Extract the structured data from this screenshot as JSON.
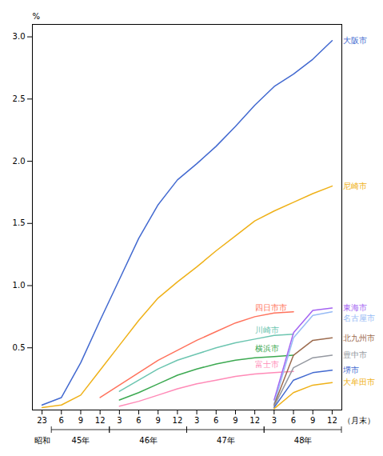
{
  "chart_data": {
    "type": "line",
    "ylabel": "%",
    "categories": [
      "23",
      "6",
      "9",
      "12",
      "3",
      "6",
      "9",
      "12",
      "3",
      "6",
      "9",
      "12",
      "3",
      "6",
      "9",
      "12"
    ],
    "series": [
      {
        "name": "大阪市",
        "values": [
          0.04,
          0.1,
          0.38,
          0.72,
          1.05,
          1.38,
          1.65,
          1.85,
          1.98,
          2.12,
          2.28,
          2.45,
          2.6,
          2.7,
          2.82,
          2.97
        ]
      },
      {
        "name": "尼崎市",
        "values": [
          0.02,
          0.04,
          0.12,
          0.32,
          0.52,
          0.72,
          0.9,
          1.03,
          1.15,
          1.28,
          1.4,
          1.52,
          1.6,
          1.67,
          1.74,
          1.8
        ]
      },
      {
        "name": "四日市市",
        "values": [
          null,
          null,
          null,
          0.1,
          0.2,
          0.3,
          0.4,
          0.48,
          0.56,
          0.63,
          0.7,
          0.75,
          0.78,
          0.79,
          null,
          null
        ]
      },
      {
        "name": "川崎市",
        "values": [
          null,
          null,
          null,
          null,
          0.15,
          0.24,
          0.33,
          0.4,
          0.45,
          0.5,
          0.54,
          0.57,
          0.6,
          0.61,
          null,
          null
        ]
      },
      {
        "name": "横浜市",
        "values": [
          null,
          null,
          null,
          null,
          0.08,
          0.14,
          0.21,
          0.28,
          0.33,
          0.37,
          0.4,
          0.42,
          0.43,
          0.44,
          null,
          null
        ]
      },
      {
        "name": "富士市",
        "values": [
          null,
          null,
          null,
          null,
          0.03,
          0.07,
          0.12,
          0.17,
          0.21,
          0.24,
          0.27,
          0.29,
          0.3,
          0.31,
          null,
          null
        ]
      },
      {
        "name": "東海市",
        "values": [
          null,
          null,
          null,
          null,
          null,
          null,
          null,
          null,
          null,
          null,
          null,
          null,
          0.08,
          0.62,
          0.8,
          0.82
        ]
      },
      {
        "name": "名古屋市",
        "values": [
          null,
          null,
          null,
          null,
          null,
          null,
          null,
          null,
          null,
          null,
          null,
          null,
          0.05,
          0.58,
          0.76,
          0.79
        ]
      },
      {
        "name": "北九州市",
        "values": [
          null,
          null,
          null,
          null,
          null,
          null,
          null,
          null,
          null,
          null,
          null,
          null,
          0.04,
          0.44,
          0.56,
          0.58
        ]
      },
      {
        "name": "豊中市",
        "values": [
          null,
          null,
          null,
          null,
          null,
          null,
          null,
          null,
          null,
          null,
          null,
          null,
          0.03,
          0.34,
          0.42,
          0.44
        ]
      },
      {
        "name": "堺市",
        "values": [
          null,
          null,
          null,
          null,
          null,
          null,
          null,
          null,
          null,
          null,
          null,
          null,
          0.02,
          0.24,
          0.3,
          0.32
        ]
      },
      {
        "name": "大牟田市",
        "values": [
          null,
          null,
          null,
          null,
          null,
          null,
          null,
          null,
          null,
          null,
          null,
          null,
          0.01,
          0.14,
          0.2,
          0.22
        ]
      }
    ],
    "ylim": [
      0,
      3.1
    ],
    "yticks": [
      0.5,
      {
        "value": 1.0,
        "label": "1.0"
      },
      1.5,
      {
        "value": 2.0,
        "label": "2.0"
      },
      2.5,
      {
        "value": 3.0,
        "label": "3.0"
      }
    ],
    "grid": false,
    "annotations": [
      "（月末）"
    ],
    "x_groups": [
      {
        "label": "昭和",
        "count": 1
      },
      {
        "label": "45年",
        "count": 3
      },
      {
        "label": "46年",
        "count": 4
      },
      {
        "label": "47年",
        "count": 4
      },
      {
        "label": "48年",
        "count": 4
      }
    ]
  }
}
